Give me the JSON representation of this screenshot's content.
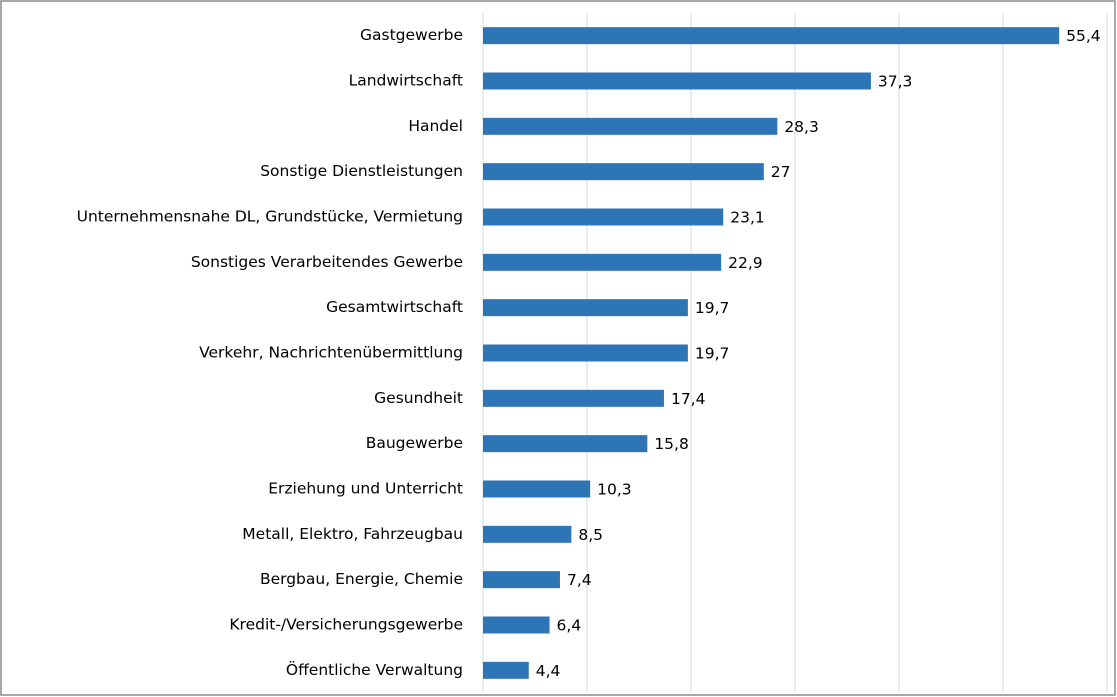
{
  "chart_data": {
    "type": "barh",
    "categories": [
      "Gastgewerbe",
      "Landwirtschaft",
      "Handel",
      "Sonstige Dienstleistungen",
      "Unternehmensnahe DL, Grundstücke, Vermietung",
      "Sonstiges Verarbeitendes Gewerbe",
      "Gesamtwirtschaft",
      "Verkehr, Nachrichtenübermittlung",
      "Gesundheit",
      "Baugewerbe",
      "Erziehung und Unterricht",
      "Metall, Elektro, Fahrzeugbau",
      "Bergbau, Energie, Chemie",
      "Kredit-/Versicherungsgewerbe",
      "Öffentliche Verwaltung"
    ],
    "values": [
      55.4,
      37.3,
      28.3,
      27,
      23.1,
      22.9,
      19.7,
      19.7,
      17.4,
      15.8,
      10.3,
      8.5,
      7.4,
      6.4,
      4.4
    ],
    "value_labels": [
      "55,4",
      "37,3",
      "28,3",
      "27",
      "23,1",
      "22,9",
      "19,7",
      "19,7",
      "17,4",
      "15,8",
      "10,3",
      "8,5",
      "7,4",
      "6,4",
      "4,4"
    ],
    "color": "#2e75b6",
    "xlim": [
      0,
      60
    ],
    "xticks": [
      0,
      10,
      20,
      30,
      40,
      50,
      60
    ],
    "grid": true
  }
}
